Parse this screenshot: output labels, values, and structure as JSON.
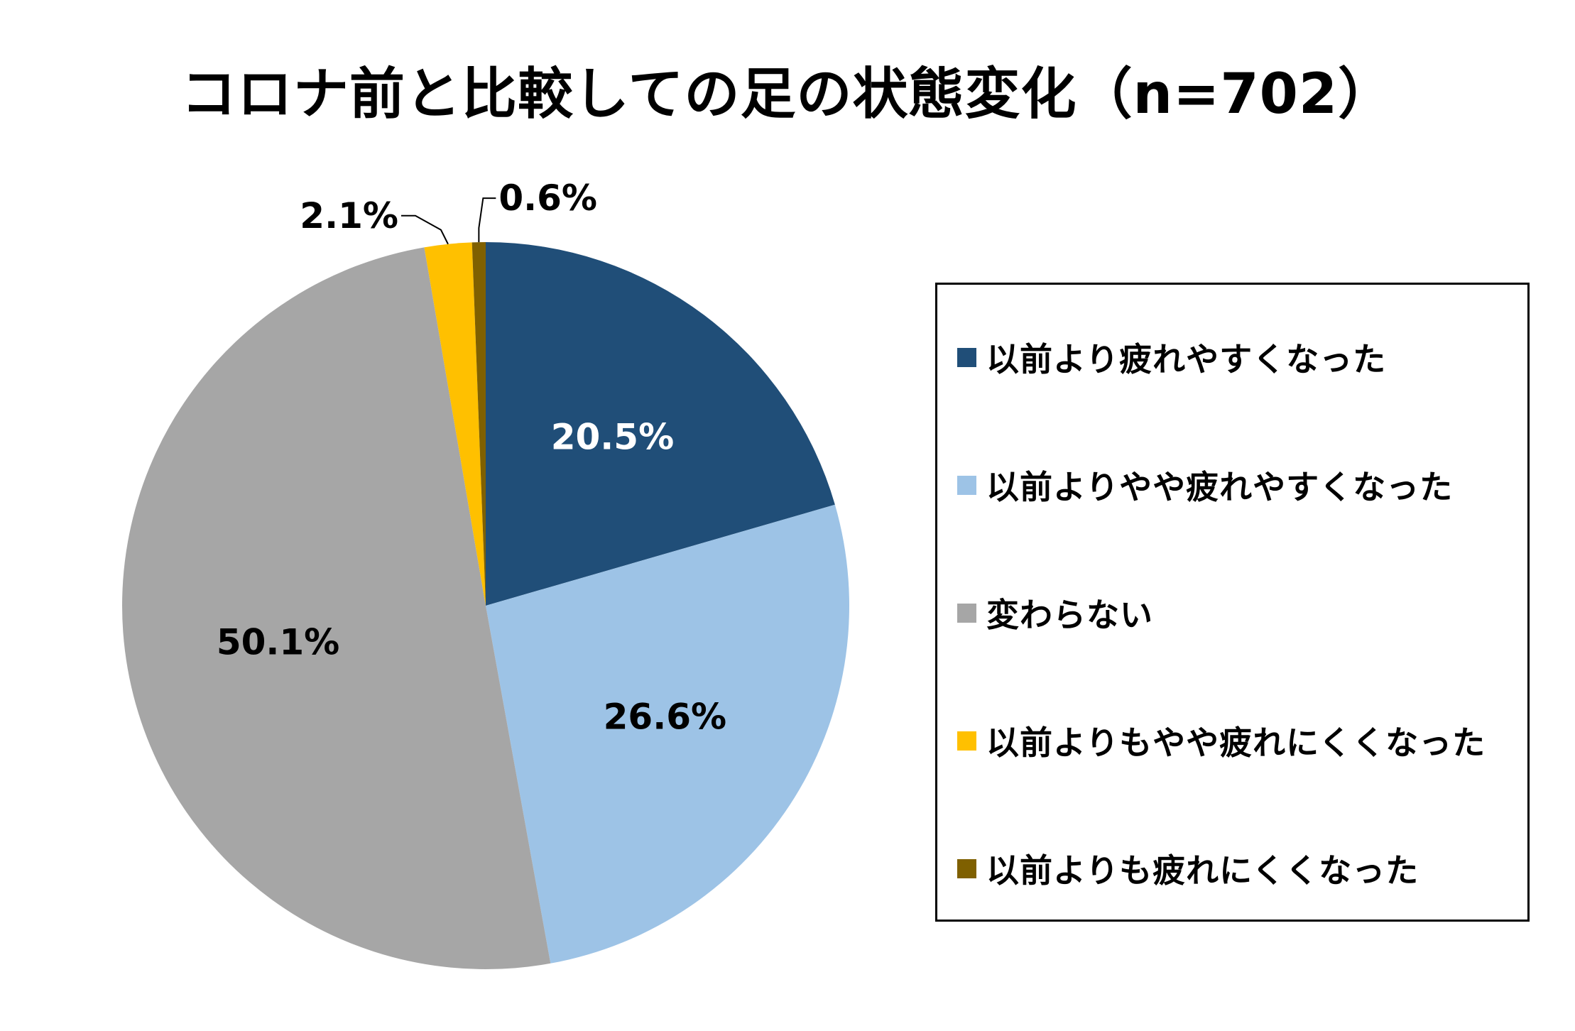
{
  "chart_data": {
    "type": "pie",
    "title": "コロナ前と比較しての足の状態変化（n=702）",
    "slices": [
      {
        "label": "以前より疲れやすくなった",
        "value": 20.5,
        "value_label": "20.5%",
        "color": "#204E78",
        "text_color": "#FFFFFF"
      },
      {
        "label": "以前よりやや疲れやすくなった",
        "value": 26.6,
        "value_label": "26.6%",
        "color": "#9DC3E6",
        "text_color": "#000000"
      },
      {
        "label": "変わらない",
        "value": 50.1,
        "value_label": "50.1%",
        "color": "#A6A6A6",
        "text_color": "#000000"
      },
      {
        "label": "以前よりもやや疲れにくくなった",
        "value": 2.1,
        "value_label": "2.1%",
        "color": "#FFC000",
        "text_color": "#000000"
      },
      {
        "label": "以前よりも疲れにくくなった",
        "value": 0.6,
        "value_label": "0.6%",
        "color": "#7F6000",
        "text_color": "#000000"
      }
    ],
    "start_angle": "12 o'clock",
    "direction": "clockwise",
    "legend_position": "right"
  }
}
